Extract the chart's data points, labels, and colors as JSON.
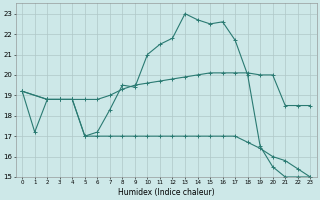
{
  "xlabel": "Humidex (Indice chaleur)",
  "xlim": [
    -0.5,
    23.5
  ],
  "ylim": [
    15,
    23.5
  ],
  "yticks": [
    15,
    16,
    17,
    18,
    19,
    20,
    21,
    22,
    23
  ],
  "xticks": [
    0,
    1,
    2,
    3,
    4,
    5,
    6,
    7,
    8,
    9,
    10,
    11,
    12,
    13,
    14,
    15,
    16,
    17,
    18,
    19,
    20,
    21,
    22,
    23
  ],
  "bg_color": "#cde8e8",
  "grid_color": "#b0c8c8",
  "line_color": "#2a7a72",
  "line1_x": [
    0,
    1,
    2,
    3,
    4,
    5,
    6,
    7,
    8,
    9,
    10,
    11,
    12,
    13,
    14,
    15,
    16,
    17,
    18,
    19,
    20,
    21,
    22,
    23
  ],
  "line1_y": [
    19.2,
    17.2,
    18.8,
    18.8,
    18.8,
    17.0,
    17.2,
    18.3,
    19.5,
    19.4,
    21.0,
    21.5,
    21.8,
    23.0,
    22.7,
    22.5,
    22.6,
    21.7,
    20.0,
    16.5,
    15.5,
    15.0,
    15.0,
    15.0
  ],
  "line2_x": [
    0,
    2,
    3,
    4,
    5,
    6,
    7,
    8,
    9,
    10,
    11,
    12,
    13,
    14,
    15,
    16,
    17,
    18,
    19,
    20,
    21,
    22,
    23
  ],
  "line2_y": [
    19.2,
    18.8,
    18.8,
    18.8,
    18.8,
    18.8,
    19.0,
    19.3,
    19.5,
    19.6,
    19.7,
    19.8,
    19.9,
    20.0,
    20.1,
    20.1,
    20.1,
    20.1,
    20.0,
    20.0,
    18.5,
    18.5,
    18.5
  ],
  "line3_x": [
    0,
    2,
    3,
    4,
    5,
    6,
    7,
    8,
    9,
    10,
    11,
    12,
    13,
    14,
    15,
    16,
    17,
    18,
    19,
    20,
    21,
    22,
    23
  ],
  "line3_y": [
    19.2,
    18.8,
    18.8,
    18.8,
    17.0,
    17.0,
    17.0,
    17.0,
    17.0,
    17.0,
    17.0,
    17.0,
    17.0,
    17.0,
    17.0,
    17.0,
    17.0,
    16.7,
    16.4,
    16.0,
    15.8,
    15.4,
    15.0
  ]
}
